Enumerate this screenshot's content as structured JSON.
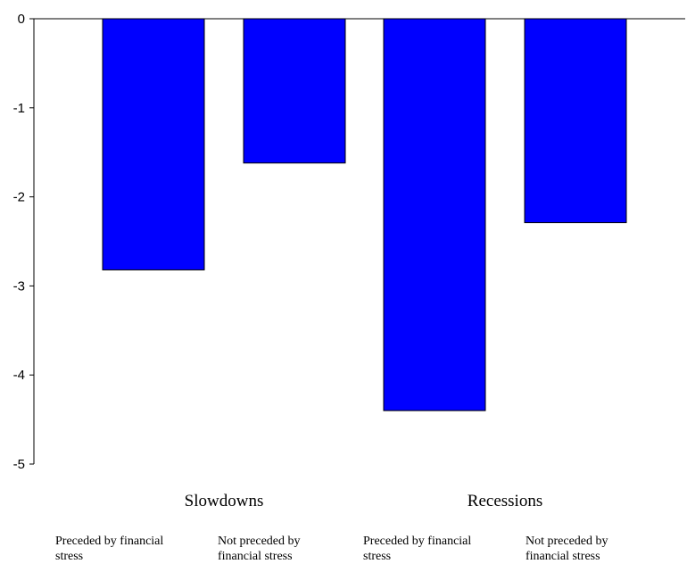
{
  "chart_data": {
    "type": "bar",
    "title": "",
    "xlabel": "",
    "ylabel": "",
    "ylim": [
      -5,
      0
    ],
    "yticks": [
      "0",
      "-1",
      "-2",
      "-3",
      "-4",
      "-5"
    ],
    "bar_color": "#0000FF",
    "groups": [
      {
        "label": "Slowdowns",
        "bars": [
          {
            "label_lines": [
              "Preceded by financial",
              "stress"
            ],
            "value": -2.82
          },
          {
            "label_lines": [
              "Not preceded by",
              "financial stress"
            ],
            "value": -1.62
          }
        ]
      },
      {
        "label": "Recessions",
        "bars": [
          {
            "label_lines": [
              "Preceded by financial",
              "stress"
            ],
            "value": -4.4
          },
          {
            "label_lines": [
              "Not preceded by",
              "financial stress"
            ],
            "value": -2.29
          }
        ]
      }
    ]
  }
}
